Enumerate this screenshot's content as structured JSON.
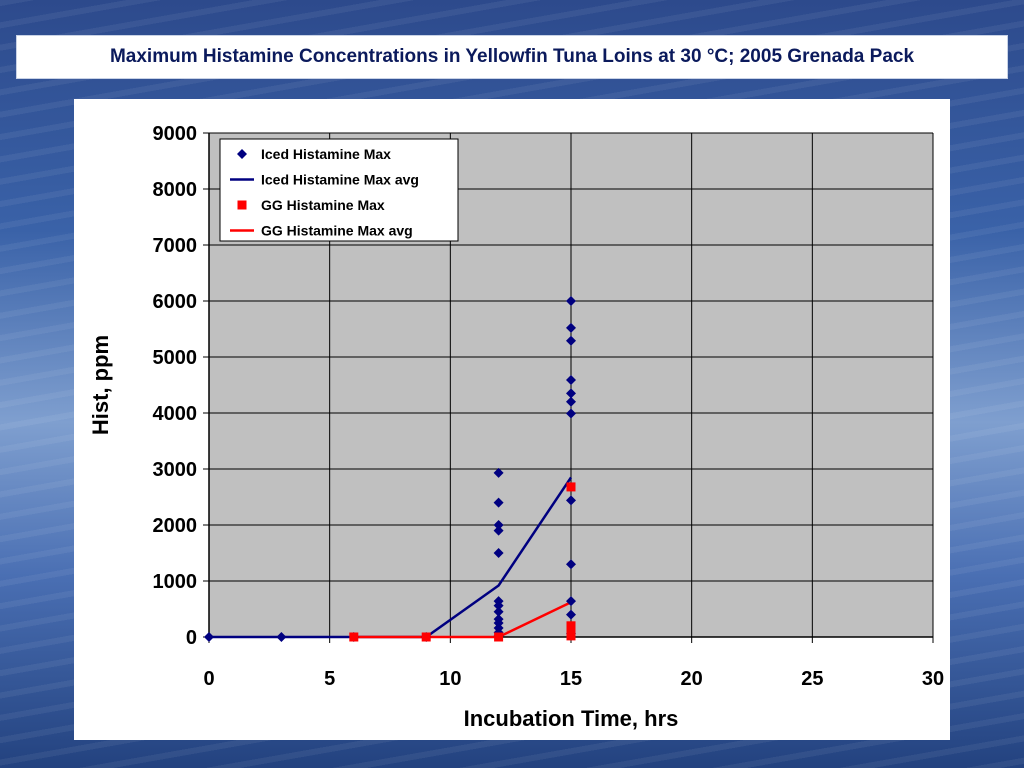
{
  "slide": {
    "title": "Maximum Histamine Concentrations in Yellowfin Tuna Loins at 30 °C; 2005 Grenada Pack"
  },
  "chart_data": {
    "type": "scatter",
    "title": "",
    "xlabel": "Incubation Time, hrs",
    "ylabel": "Hist, ppm",
    "xlim": [
      0,
      30
    ],
    "ylim": [
      0,
      9000
    ],
    "x_ticks": [
      0,
      5,
      10,
      15,
      20,
      25,
      30
    ],
    "y_ticks": [
      0,
      1000,
      2000,
      3000,
      4000,
      5000,
      6000,
      7000,
      8000,
      9000
    ],
    "grid": true,
    "plot_background": "#c0c0c0",
    "legend_position": "top-left",
    "series": [
      {
        "name": "Iced Histamine Max",
        "kind": "scatter",
        "marker": "diamond",
        "color": "#000080",
        "points": [
          [
            0,
            0
          ],
          [
            3,
            0
          ],
          [
            6,
            0
          ],
          [
            9,
            0
          ],
          [
            12,
            2930
          ],
          [
            12,
            2400
          ],
          [
            12,
            2000
          ],
          [
            12,
            1900
          ],
          [
            12,
            1500
          ],
          [
            12,
            640
          ],
          [
            12,
            560
          ],
          [
            12,
            450
          ],
          [
            12,
            320
          ],
          [
            12,
            250
          ],
          [
            12,
            160
          ],
          [
            12,
            80
          ],
          [
            12,
            20
          ],
          [
            15,
            6000
          ],
          [
            15,
            5520
          ],
          [
            15,
            5290
          ],
          [
            15,
            4590
          ],
          [
            15,
            4350
          ],
          [
            15,
            4200
          ],
          [
            15,
            3990
          ],
          [
            15,
            2440
          ],
          [
            15,
            1300
          ],
          [
            15,
            640
          ],
          [
            15,
            400
          ],
          [
            15,
            60
          ]
        ]
      },
      {
        "name": "Iced Histamine Max avg",
        "kind": "line",
        "color": "#000080",
        "points": [
          [
            0,
            0
          ],
          [
            3,
            0
          ],
          [
            6,
            0
          ],
          [
            9,
            0
          ],
          [
            12,
            920
          ],
          [
            15,
            2850
          ]
        ]
      },
      {
        "name": "GG Histamine Max",
        "kind": "scatter",
        "marker": "square",
        "color": "#ff0000",
        "points": [
          [
            6,
            0
          ],
          [
            9,
            0
          ],
          [
            12,
            0
          ],
          [
            15,
            2680
          ],
          [
            15,
            200
          ],
          [
            15,
            80
          ],
          [
            15,
            20
          ]
        ]
      },
      {
        "name": "GG Histamine Max avg",
        "kind": "line",
        "color": "#ff0000",
        "points": [
          [
            6,
            0
          ],
          [
            9,
            0
          ],
          [
            12,
            0
          ],
          [
            15,
            620
          ]
        ]
      }
    ]
  }
}
